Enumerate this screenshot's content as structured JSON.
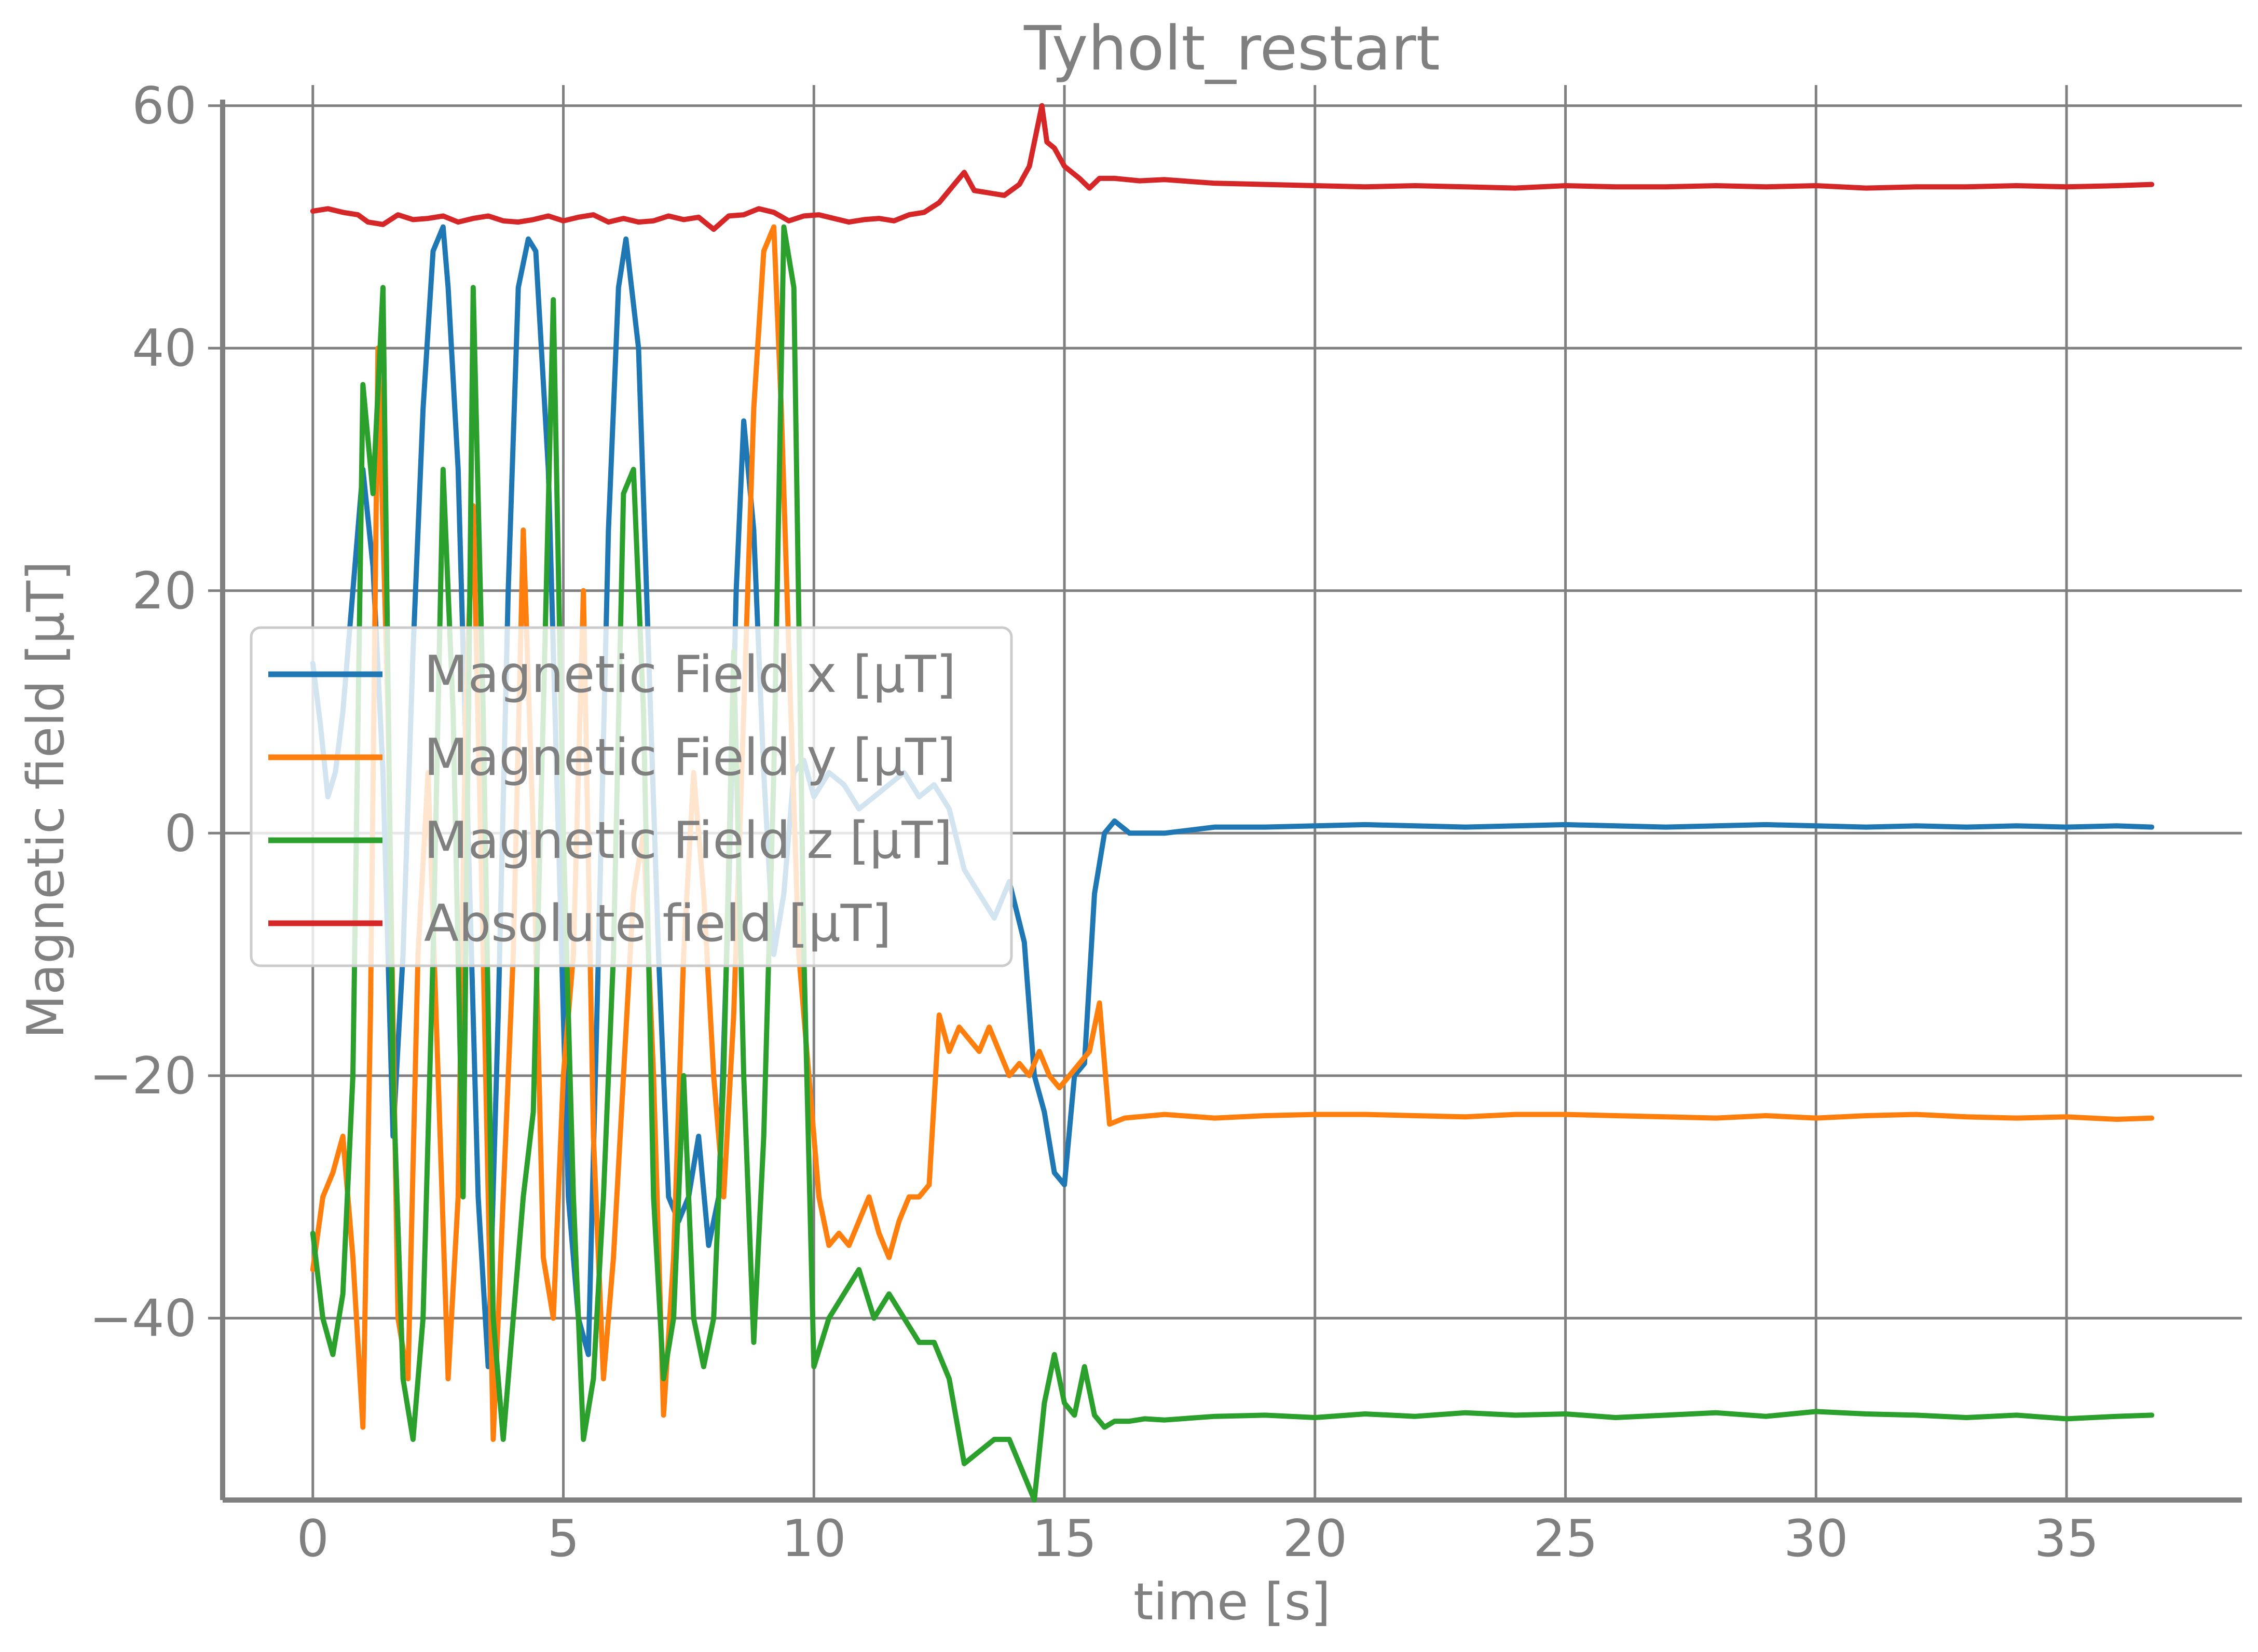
{
  "chart_data": {
    "type": "line",
    "title": "Tyholt_restart",
    "xlabel": "time [s]",
    "ylabel": "Magnetic field [μT]",
    "xlim": [
      -1.8,
      38.5
    ],
    "ylim": [
      -55,
      60.5
    ],
    "xticks": [
      0,
      5,
      10,
      15,
      20,
      25,
      30,
      35
    ],
    "xtick_labels": [
      "0",
      "5",
      "10",
      "15",
      "20",
      "25",
      "30",
      "35"
    ],
    "yticks": [
      -40,
      -20,
      0,
      20,
      40,
      60
    ],
    "ytick_labels": [
      "−40",
      "−20",
      "0",
      "20",
      "40",
      "60"
    ],
    "grid": true,
    "legend_position": "center-left",
    "series": [
      {
        "name": "Magnetic Field x [μT]",
        "color": "#1f77b4",
        "x": [
          0,
          0.15,
          0.3,
          0.45,
          0.6,
          0.8,
          1.0,
          1.2,
          1.4,
          1.6,
          1.8,
          2.0,
          2.2,
          2.4,
          2.6,
          2.7,
          2.9,
          3.1,
          3.3,
          3.5,
          3.7,
          3.9,
          4.1,
          4.3,
          4.45,
          4.7,
          4.9,
          5.1,
          5.3,
          5.5,
          5.7,
          5.9,
          6.1,
          6.25,
          6.5,
          6.7,
          6.9,
          7.1,
          7.3,
          7.5,
          7.7,
          7.9,
          8.1,
          8.3,
          8.45,
          8.6,
          8.8,
          9.0,
          9.2,
          9.4,
          9.6,
          9.8,
          10.0,
          10.3,
          10.6,
          10.9,
          11.2,
          11.5,
          11.8,
          12.1,
          12.4,
          12.7,
          13.0,
          13.3,
          13.6,
          13.9,
          14.2,
          14.4,
          14.6,
          14.8,
          15.0,
          15.2,
          15.4,
          15.6,
          15.8,
          16.0,
          16.3,
          16.6,
          17.0,
          18.0,
          19.0,
          20.0,
          21.0,
          22.0,
          23.0,
          24.0,
          25.0,
          26.0,
          27.0,
          28.0,
          29.0,
          30.0,
          31.0,
          32.0,
          33.0,
          34.0,
          35.0,
          36.0,
          36.7
        ],
        "y": [
          14,
          9,
          3,
          5,
          10,
          20,
          30,
          22,
          5,
          -25,
          -10,
          15,
          35,
          48,
          50,
          45,
          30,
          0,
          -30,
          -44,
          -15,
          20,
          45,
          49,
          48,
          30,
          0,
          -30,
          -40,
          -43,
          -10,
          25,
          45,
          49,
          40,
          15,
          -10,
          -30,
          -32,
          -30,
          -25,
          -34,
          -30,
          -5,
          20,
          34,
          25,
          5,
          -10,
          -5,
          5,
          6,
          3,
          5,
          4,
          2,
          3,
          4,
          5,
          3,
          4,
          2,
          -3,
          -5,
          -7,
          -4,
          -9,
          -20,
          -23,
          -28,
          -29,
          -20,
          -19,
          -5,
          0,
          1,
          0,
          0,
          0,
          0.5,
          0.5,
          0.6,
          0.7,
          0.6,
          0.5,
          0.6,
          0.7,
          0.6,
          0.5,
          0.6,
          0.7,
          0.6,
          0.5,
          0.6,
          0.5,
          0.6,
          0.5,
          0.6,
          0.5
        ]
      },
      {
        "name": "Magnetic Field y [μT]",
        "color": "#ff7f0e",
        "x": [
          0,
          0.2,
          0.4,
          0.6,
          0.8,
          1.0,
          1.15,
          1.3,
          1.5,
          1.7,
          1.9,
          2.1,
          2.3,
          2.5,
          2.7,
          2.9,
          3.05,
          3.2,
          3.4,
          3.6,
          3.8,
          4.0,
          4.2,
          4.4,
          4.6,
          4.8,
          5.0,
          5.2,
          5.4,
          5.6,
          5.8,
          6.0,
          6.2,
          6.4,
          6.6,
          6.8,
          7.0,
          7.2,
          7.4,
          7.6,
          7.8,
          8.0,
          8.2,
          8.4,
          8.6,
          8.8,
          9.0,
          9.2,
          9.35,
          9.5,
          9.7,
          9.9,
          10.1,
          10.3,
          10.5,
          10.7,
          10.9,
          11.1,
          11.3,
          11.5,
          11.7,
          11.9,
          12.1,
          12.3,
          12.5,
          12.7,
          12.9,
          13.1,
          13.3,
          13.5,
          13.7,
          13.9,
          14.1,
          14.3,
          14.5,
          14.7,
          14.9,
          15.1,
          15.3,
          15.5,
          15.7,
          15.9,
          16.2,
          17.0,
          18.0,
          19.0,
          20.0,
          21.0,
          22.0,
          23.0,
          24.0,
          25.0,
          26.0,
          27.0,
          28.0,
          29.0,
          30.0,
          31.0,
          32.0,
          33.0,
          34.0,
          35.0,
          36.0,
          36.7
        ],
        "y": [
          -36,
          -30,
          -28,
          -25,
          -35,
          -49,
          -15,
          40,
          10,
          -40,
          -45,
          -10,
          5,
          -20,
          -45,
          -30,
          10,
          27,
          -10,
          -50,
          -30,
          -10,
          25,
          0,
          -35,
          -40,
          -20,
          -10,
          20,
          -25,
          -45,
          -35,
          -20,
          -5,
          0,
          -20,
          -48,
          -35,
          -10,
          5,
          -5,
          -20,
          -30,
          -15,
          10,
          35,
          48,
          50,
          35,
          15,
          -10,
          -20,
          -30,
          -34,
          -33,
          -34,
          -32,
          -30,
          -33,
          -35,
          -32,
          -30,
          -30,
          -29,
          -15,
          -18,
          -16,
          -17,
          -18,
          -16,
          -18,
          -20,
          -19,
          -20,
          -18,
          -20,
          -21,
          -20,
          -19,
          -18,
          -14,
          -24,
          -23.5,
          -23.2,
          -23.5,
          -23.3,
          -23.2,
          -23.2,
          -23.3,
          -23.4,
          -23.2,
          -23.2,
          -23.3,
          -23.4,
          -23.5,
          -23.3,
          -23.5,
          -23.3,
          -23.2,
          -23.4,
          -23.5,
          -23.4,
          -23.6,
          -23.5
        ]
      },
      {
        "name": "Magnetic Field z [μT]",
        "color": "#2ca02c",
        "x": [
          0,
          0.2,
          0.4,
          0.6,
          0.8,
          1.0,
          1.2,
          1.4,
          1.6,
          1.8,
          2.0,
          2.2,
          2.4,
          2.6,
          2.8,
          3.0,
          3.2,
          3.4,
          3.6,
          3.8,
          4.0,
          4.2,
          4.4,
          4.6,
          4.8,
          5.0,
          5.2,
          5.4,
          5.6,
          5.8,
          6.0,
          6.2,
          6.4,
          6.6,
          6.8,
          7.0,
          7.2,
          7.4,
          7.6,
          7.8,
          8.0,
          8.2,
          8.4,
          8.6,
          8.8,
          9.0,
          9.2,
          9.4,
          9.6,
          9.8,
          10.0,
          10.3,
          10.6,
          10.9,
          11.2,
          11.5,
          11.8,
          12.1,
          12.4,
          12.7,
          13.0,
          13.3,
          13.6,
          13.9,
          14.2,
          14.4,
          14.6,
          14.8,
          15.0,
          15.2,
          15.4,
          15.6,
          15.8,
          16.0,
          16.3,
          16.6,
          17.0,
          18.0,
          19.0,
          20.0,
          21.0,
          22.0,
          23.0,
          24.0,
          25.0,
          26.0,
          27.0,
          28.0,
          29.0,
          30.0,
          31.0,
          32.0,
          33.0,
          34.0,
          35.0,
          36.0,
          36.7
        ],
        "y": [
          -33,
          -40,
          -43,
          -38,
          -20,
          37,
          28,
          45,
          -20,
          -45,
          -50,
          -40,
          -10,
          30,
          10,
          -30,
          45,
          10,
          -40,
          -50,
          -40,
          -30,
          -23,
          10,
          44,
          0,
          -30,
          -50,
          -45,
          -30,
          -10,
          28,
          30,
          10,
          -30,
          -45,
          -40,
          -20,
          -40,
          -44,
          -40,
          -20,
          15,
          -20,
          -42,
          -25,
          5,
          50,
          45,
          -10,
          -44,
          -40,
          -38,
          -36,
          -40,
          -38,
          -40,
          -42,
          -42,
          -45,
          -52,
          -51,
          -50,
          -50,
          -53,
          -55,
          -47,
          -43,
          -47,
          -48,
          -44,
          -48,
          -49,
          -48.5,
          -48.5,
          -48.3,
          -48.4,
          -48.1,
          -48,
          -48.2,
          -47.9,
          -48.1,
          -47.8,
          -48,
          -47.9,
          -48.2,
          -48,
          -47.8,
          -48.1,
          -47.7,
          -47.9,
          -48,
          -48.2,
          -48,
          -48.3,
          -48.1,
          -48
        ]
      },
      {
        "name": "Absolute field [μT]",
        "color": "#d62728",
        "x": [
          0,
          0.3,
          0.6,
          0.9,
          1.1,
          1.4,
          1.7,
          2.0,
          2.3,
          2.6,
          2.9,
          3.2,
          3.5,
          3.8,
          4.1,
          4.4,
          4.7,
          5.0,
          5.3,
          5.6,
          5.9,
          6.2,
          6.5,
          6.8,
          7.1,
          7.4,
          7.7,
          8.0,
          8.3,
          8.6,
          8.9,
          9.2,
          9.5,
          9.8,
          10.1,
          10.4,
          10.7,
          11.0,
          11.3,
          11.6,
          11.9,
          12.2,
          12.5,
          12.8,
          13.0,
          13.2,
          13.5,
          13.8,
          14.1,
          14.3,
          14.45,
          14.55,
          14.65,
          14.8,
          15.0,
          15.3,
          15.5,
          15.7,
          16.0,
          16.5,
          17.0,
          18.0,
          19.0,
          20.0,
          21.0,
          22.0,
          23.0,
          24.0,
          25.0,
          26.0,
          27.0,
          28.0,
          29.0,
          30.0,
          31.0,
          32.0,
          33.0,
          34.0,
          35.0,
          36.0,
          36.7
        ],
        "y": [
          51.3,
          51.5,
          51.2,
          51,
          50.4,
          50.2,
          51,
          50.6,
          50.7,
          50.9,
          50.4,
          50.7,
          50.9,
          50.5,
          50.4,
          50.6,
          50.9,
          50.5,
          50.8,
          51,
          50.4,
          50.7,
          50.4,
          50.5,
          50.9,
          50.6,
          50.8,
          49.8,
          50.9,
          51.0,
          51.5,
          51.2,
          50.5,
          50.9,
          51.0,
          50.7,
          50.4,
          50.6,
          50.7,
          50.5,
          51,
          51.2,
          52,
          53.5,
          54.5,
          53,
          52.8,
          52.6,
          53.5,
          55,
          58,
          60,
          57,
          56.5,
          55,
          54,
          53.2,
          54,
          54,
          53.8,
          53.9,
          53.6,
          53.5,
          53.4,
          53.3,
          53.4,
          53.3,
          53.2,
          53.4,
          53.3,
          53.3,
          53.4,
          53.3,
          53.4,
          53.2,
          53.3,
          53.3,
          53.4,
          53.3,
          53.4,
          53.5
        ]
      }
    ]
  }
}
